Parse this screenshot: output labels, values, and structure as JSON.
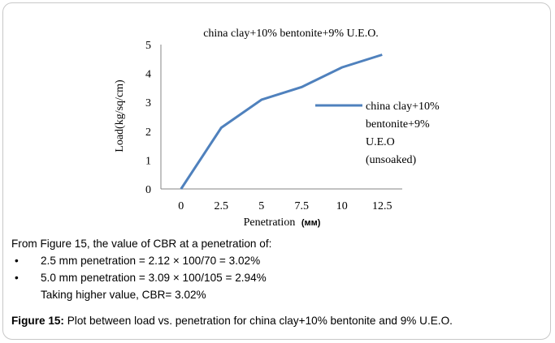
{
  "chart_data": {
    "type": "line",
    "title": "china clay+10% bentonite+9% U.E.O.",
    "xlabel": "Penetration",
    "xlabel_unit": "(мм)",
    "ylabel": "Load(kg/sq/cm)",
    "categories": [
      "0",
      "2.5",
      "5",
      "7.5",
      "10",
      "12.5"
    ],
    "y_ticks": [
      0,
      1,
      2,
      3,
      4,
      5
    ],
    "ylim": [
      0,
      5
    ],
    "series": [
      {
        "name_lines": [
          "china clay+10%",
          "bentonite+9%",
          "U.E.O",
          "(unsoaked)"
        ],
        "values": [
          0,
          2.12,
          3.09,
          3.53,
          4.21,
          4.65
        ],
        "color": "#4f81bd"
      }
    ],
    "legend_position": "right",
    "grid": false
  },
  "text": {
    "intro": "From Figure 15, the value of CBR at a penetration of:",
    "bullets": [
      "2.5 mm penetration = 2.12 × 100/70 = 3.02%",
      "5.0 mm penetration = 3.09 × 100/105 = 2.94%"
    ],
    "conclusion": "Taking higher value, CBR= 3.02%",
    "caption_label": "Figure 15:",
    "caption_text": " Plot between load vs. penetration for china clay+10% bentonite and 9% U.E.O."
  }
}
